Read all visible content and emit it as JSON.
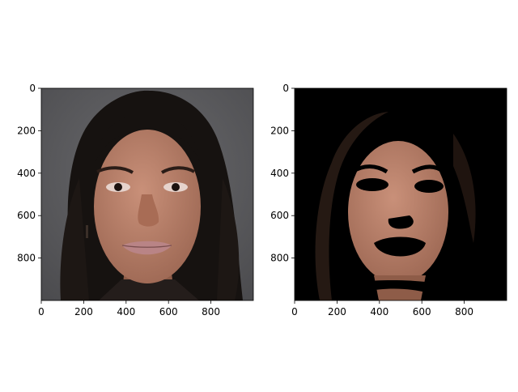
{
  "chart_data": [
    {
      "type": "image",
      "content": "portrait photograph of a woman with long dark hair on a grey background",
      "xlim": [
        0,
        1000
      ],
      "ylim": [
        1000,
        0
      ],
      "xticks": [
        0,
        200,
        400,
        600,
        800
      ],
      "yticks": [
        0,
        200,
        400,
        600,
        800
      ],
      "title": "",
      "xlabel": "",
      "ylabel": "",
      "colors": {
        "background": "#5b5b5e",
        "hair": "#161210",
        "skin": "#b57f68",
        "lips": "#b98486",
        "clothing": "#241d1b"
      }
    },
    {
      "type": "image",
      "content": "same portrait after skin segmentation: non-skin pixels black, skin pixels kept",
      "xlim": [
        0,
        1000
      ],
      "ylim": [
        1000,
        0
      ],
      "xticks": [
        0,
        200,
        400,
        600,
        800
      ],
      "yticks": [
        0,
        200,
        400,
        600,
        800
      ],
      "title": "",
      "xlabel": "",
      "ylabel": "",
      "colors": {
        "background": "#000000",
        "hair_remnant": "#2c1d16",
        "skin": "#b57f68",
        "masked_features": "#000000"
      }
    }
  ]
}
